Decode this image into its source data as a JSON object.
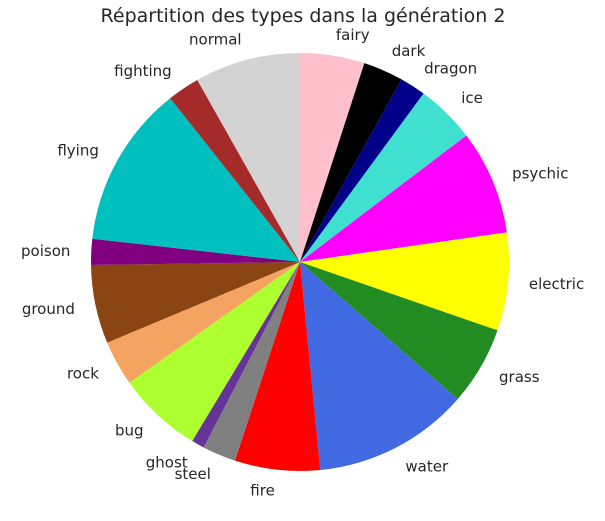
{
  "chart_data": {
    "type": "pie",
    "title": "Répartition des types dans la génération 2",
    "start_angle_deg": 90,
    "direction": "clockwise",
    "slices": [
      {
        "label": "fairy",
        "value": 5,
        "color": "#ffc0cb"
      },
      {
        "label": "dark",
        "value": 3.1,
        "color": "#000000"
      },
      {
        "label": "dragon",
        "value": 2,
        "color": "#00008b"
      },
      {
        "label": "ice",
        "value": 4.6,
        "color": "#40e0d0"
      },
      {
        "label": "psychic",
        "value": 8.1,
        "color": "#ff00ff"
      },
      {
        "label": "electric",
        "value": 7.6,
        "color": "#ffff00"
      },
      {
        "label": "grass",
        "value": 6.1,
        "color": "#228b22"
      },
      {
        "label": "water",
        "value": 12.1,
        "color": "#4169e1"
      },
      {
        "label": "fire",
        "value": 6.6,
        "color": "#ff0000"
      },
      {
        "label": "steel",
        "value": 2.6,
        "color": "#808080"
      },
      {
        "label": "ghost",
        "value": 1,
        "color": "#663399"
      },
      {
        "label": "bug",
        "value": 6.6,
        "color": "#adff2f"
      },
      {
        "label": "rock",
        "value": 3.5,
        "color": "#f4a460"
      },
      {
        "label": "ground",
        "value": 6.1,
        "color": "#8b4513"
      },
      {
        "label": "poison",
        "value": 2,
        "color": "#800080"
      },
      {
        "label": "flying",
        "value": 12.6,
        "color": "#00bfbf"
      },
      {
        "label": "fighting",
        "value": 2.5,
        "color": "#a52a2a"
      },
      {
        "label": "normal",
        "value": 8.2,
        "color": "#d3d3d3"
      }
    ]
  }
}
